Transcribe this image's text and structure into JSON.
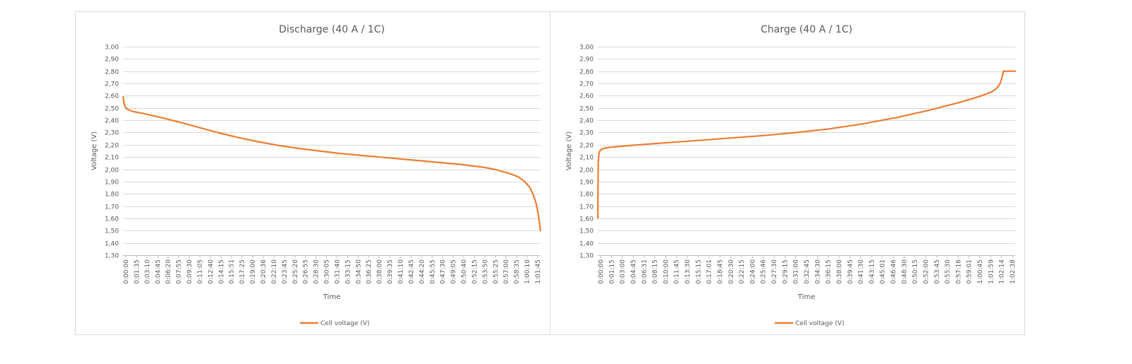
{
  "colors": {
    "series": "#ED7D31",
    "grid": "#D9D9D9",
    "text": "#595959"
  },
  "chart_data": [
    {
      "type": "line",
      "title": "Discharge (40 A / 1C)",
      "xlabel": "Time",
      "ylabel": "Voltage (V)",
      "ylim": [
        1.3,
        3.0
      ],
      "y_ticks": [
        "1,30",
        "1,40",
        "1,50",
        "1,60",
        "1,70",
        "1,80",
        "1,90",
        "2,00",
        "2,10",
        "2,20",
        "2,30",
        "2,40",
        "2,50",
        "2,60",
        "2,70",
        "2,80",
        "2,90",
        "3,00"
      ],
      "x_ticks": [
        "0:00:00",
        "0:01:35",
        "0:03:10",
        "0:04:45",
        "0:06:20",
        "0:07:55",
        "0:09:30",
        "0:11:05",
        "0:12:40",
        "0:14:15",
        "0:15:51",
        "0:17:25",
        "0:19:00",
        "0:20:36",
        "0:22:10",
        "0:23:45",
        "0:25:20",
        "0:26:55",
        "0:28:30",
        "0:30:05",
        "0:31:40",
        "0:33:15",
        "0:34:50",
        "0:36:25",
        "0:38:00",
        "0:39:35",
        "0:41:10",
        "0:42:45",
        "0:44:20",
        "0:45:55",
        "0:47:30",
        "0:49:05",
        "0:50:40",
        "0:52:15",
        "0:53:50",
        "0:55:25",
        "0:57:00",
        "0:58:35",
        "1:00:10",
        "1:01:45"
      ],
      "grid": true,
      "legend_position": "bottom",
      "series": [
        {
          "name": "Cell voltage (V)",
          "x_min": [
            0,
            0.2,
            0.5,
            1,
            1.6,
            3,
            5,
            8,
            11,
            14,
            17,
            20,
            23,
            26,
            29,
            32,
            35,
            38,
            41,
            44,
            47,
            50,
            53,
            55,
            57,
            58.5,
            59.5,
            60.3,
            60.8,
            61.2,
            61.5,
            61.7,
            61.85
          ],
          "y": [
            2.59,
            2.52,
            2.495,
            2.48,
            2.47,
            2.455,
            2.43,
            2.39,
            2.345,
            2.3,
            2.26,
            2.225,
            2.195,
            2.17,
            2.15,
            2.13,
            2.115,
            2.1,
            2.085,
            2.07,
            2.055,
            2.04,
            2.02,
            2.0,
            1.97,
            1.94,
            1.9,
            1.85,
            1.79,
            1.72,
            1.64,
            1.56,
            1.5
          ]
        }
      ]
    },
    {
      "type": "line",
      "title": "Charge (40 A / 1C)",
      "xlabel": "Time",
      "ylabel": "Voltage (V)",
      "ylim": [
        1.3,
        3.0
      ],
      "y_ticks": [
        "1,30",
        "1,40",
        "1,50",
        "1,60",
        "1,70",
        "1,80",
        "1,90",
        "2,00",
        "2,10",
        "2,20",
        "2,30",
        "2,40",
        "2,50",
        "2,60",
        "2,70",
        "2,80",
        "2,90",
        "3,00"
      ],
      "x_ticks": [
        "0:00:00",
        "0:01:15",
        "0:03:00",
        "0:04:45",
        "0:06:31",
        "0:08:15",
        "0:10:00",
        "0:11:45",
        "0:13:30",
        "0:15:15",
        "0:17:01",
        "0:18:45",
        "0:20:30",
        "0:22:15",
        "0:24:00",
        "0:25:46",
        "0:27:30",
        "0:29:15",
        "0:31:00",
        "0:32:45",
        "0:34:30",
        "0:36:15",
        "0:38:00",
        "0:39:45",
        "0:41:30",
        "0:43:15",
        "0:45:01",
        "0:46:46",
        "0:48:30",
        "0:50:15",
        "0:52:00",
        "0:53:45",
        "0:55:30",
        "0:57:16",
        "0:59:01",
        "1:00:45",
        "1:01:59",
        "1:02:14",
        "1:02:38"
      ],
      "grid": true,
      "legend_position": "bottom",
      "series": [
        {
          "name": "Cell voltage (V)",
          "x_min": [
            0,
            0.05,
            0.15,
            0.3,
            0.6,
            1.2,
            2,
            5,
            10,
            15,
            20,
            25,
            30,
            35,
            40,
            45,
            50,
            55,
            58,
            59.5,
            60.3,
            60.8,
            61.1,
            61.3,
            61.5,
            63.1
          ],
          "y": [
            1.6,
            2.05,
            2.12,
            2.15,
            2.165,
            2.175,
            2.18,
            2.195,
            2.215,
            2.235,
            2.255,
            2.275,
            2.3,
            2.33,
            2.37,
            2.42,
            2.48,
            2.55,
            2.6,
            2.63,
            2.66,
            2.7,
            2.75,
            2.8,
            2.8,
            2.8
          ]
        }
      ]
    }
  ]
}
